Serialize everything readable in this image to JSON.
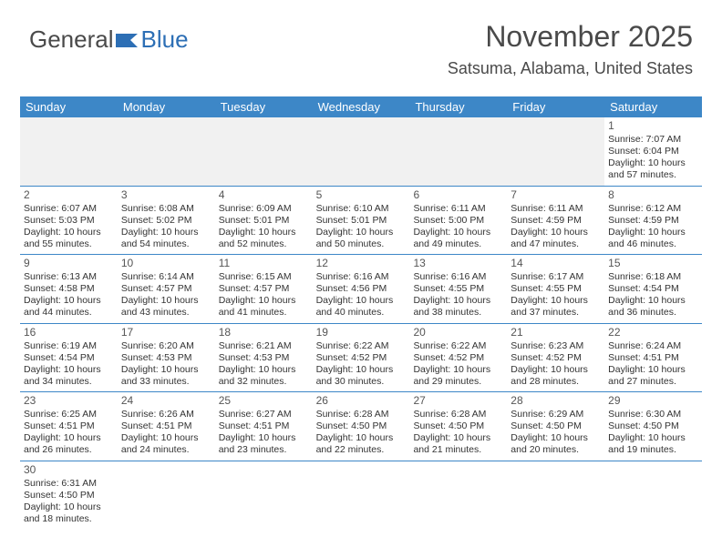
{
  "logo": {
    "general": "General",
    "blue": "Blue"
  },
  "title": {
    "month": "November 2025",
    "location": "Satsuma, Alabama, United States"
  },
  "dayNames": [
    "Sunday",
    "Monday",
    "Tuesday",
    "Wednesday",
    "Thursday",
    "Friday",
    "Saturday"
  ],
  "colors": {
    "headerBg": "#3d87c7",
    "accent": "#2d6fb5",
    "text": "#4a4a4a"
  },
  "weeks": [
    [
      {
        "blank": true
      },
      {
        "blank": true
      },
      {
        "blank": true
      },
      {
        "blank": true
      },
      {
        "blank": true
      },
      {
        "blank": true
      },
      {
        "num": "1",
        "sunrise": "Sunrise: 7:07 AM",
        "sunset": "Sunset: 6:04 PM",
        "daylight1": "Daylight: 10 hours",
        "daylight2": "and 57 minutes."
      }
    ],
    [
      {
        "num": "2",
        "sunrise": "Sunrise: 6:07 AM",
        "sunset": "Sunset: 5:03 PM",
        "daylight1": "Daylight: 10 hours",
        "daylight2": "and 55 minutes."
      },
      {
        "num": "3",
        "sunrise": "Sunrise: 6:08 AM",
        "sunset": "Sunset: 5:02 PM",
        "daylight1": "Daylight: 10 hours",
        "daylight2": "and 54 minutes."
      },
      {
        "num": "4",
        "sunrise": "Sunrise: 6:09 AM",
        "sunset": "Sunset: 5:01 PM",
        "daylight1": "Daylight: 10 hours",
        "daylight2": "and 52 minutes."
      },
      {
        "num": "5",
        "sunrise": "Sunrise: 6:10 AM",
        "sunset": "Sunset: 5:01 PM",
        "daylight1": "Daylight: 10 hours",
        "daylight2": "and 50 minutes."
      },
      {
        "num": "6",
        "sunrise": "Sunrise: 6:11 AM",
        "sunset": "Sunset: 5:00 PM",
        "daylight1": "Daylight: 10 hours",
        "daylight2": "and 49 minutes."
      },
      {
        "num": "7",
        "sunrise": "Sunrise: 6:11 AM",
        "sunset": "Sunset: 4:59 PM",
        "daylight1": "Daylight: 10 hours",
        "daylight2": "and 47 minutes."
      },
      {
        "num": "8",
        "sunrise": "Sunrise: 6:12 AM",
        "sunset": "Sunset: 4:59 PM",
        "daylight1": "Daylight: 10 hours",
        "daylight2": "and 46 minutes."
      }
    ],
    [
      {
        "num": "9",
        "sunrise": "Sunrise: 6:13 AM",
        "sunset": "Sunset: 4:58 PM",
        "daylight1": "Daylight: 10 hours",
        "daylight2": "and 44 minutes."
      },
      {
        "num": "10",
        "sunrise": "Sunrise: 6:14 AM",
        "sunset": "Sunset: 4:57 PM",
        "daylight1": "Daylight: 10 hours",
        "daylight2": "and 43 minutes."
      },
      {
        "num": "11",
        "sunrise": "Sunrise: 6:15 AM",
        "sunset": "Sunset: 4:57 PM",
        "daylight1": "Daylight: 10 hours",
        "daylight2": "and 41 minutes."
      },
      {
        "num": "12",
        "sunrise": "Sunrise: 6:16 AM",
        "sunset": "Sunset: 4:56 PM",
        "daylight1": "Daylight: 10 hours",
        "daylight2": "and 40 minutes."
      },
      {
        "num": "13",
        "sunrise": "Sunrise: 6:16 AM",
        "sunset": "Sunset: 4:55 PM",
        "daylight1": "Daylight: 10 hours",
        "daylight2": "and 38 minutes."
      },
      {
        "num": "14",
        "sunrise": "Sunrise: 6:17 AM",
        "sunset": "Sunset: 4:55 PM",
        "daylight1": "Daylight: 10 hours",
        "daylight2": "and 37 minutes."
      },
      {
        "num": "15",
        "sunrise": "Sunrise: 6:18 AM",
        "sunset": "Sunset: 4:54 PM",
        "daylight1": "Daylight: 10 hours",
        "daylight2": "and 36 minutes."
      }
    ],
    [
      {
        "num": "16",
        "sunrise": "Sunrise: 6:19 AM",
        "sunset": "Sunset: 4:54 PM",
        "daylight1": "Daylight: 10 hours",
        "daylight2": "and 34 minutes."
      },
      {
        "num": "17",
        "sunrise": "Sunrise: 6:20 AM",
        "sunset": "Sunset: 4:53 PM",
        "daylight1": "Daylight: 10 hours",
        "daylight2": "and 33 minutes."
      },
      {
        "num": "18",
        "sunrise": "Sunrise: 6:21 AM",
        "sunset": "Sunset: 4:53 PM",
        "daylight1": "Daylight: 10 hours",
        "daylight2": "and 32 minutes."
      },
      {
        "num": "19",
        "sunrise": "Sunrise: 6:22 AM",
        "sunset": "Sunset: 4:52 PM",
        "daylight1": "Daylight: 10 hours",
        "daylight2": "and 30 minutes."
      },
      {
        "num": "20",
        "sunrise": "Sunrise: 6:22 AM",
        "sunset": "Sunset: 4:52 PM",
        "daylight1": "Daylight: 10 hours",
        "daylight2": "and 29 minutes."
      },
      {
        "num": "21",
        "sunrise": "Sunrise: 6:23 AM",
        "sunset": "Sunset: 4:52 PM",
        "daylight1": "Daylight: 10 hours",
        "daylight2": "and 28 minutes."
      },
      {
        "num": "22",
        "sunrise": "Sunrise: 6:24 AM",
        "sunset": "Sunset: 4:51 PM",
        "daylight1": "Daylight: 10 hours",
        "daylight2": "and 27 minutes."
      }
    ],
    [
      {
        "num": "23",
        "sunrise": "Sunrise: 6:25 AM",
        "sunset": "Sunset: 4:51 PM",
        "daylight1": "Daylight: 10 hours",
        "daylight2": "and 26 minutes."
      },
      {
        "num": "24",
        "sunrise": "Sunrise: 6:26 AM",
        "sunset": "Sunset: 4:51 PM",
        "daylight1": "Daylight: 10 hours",
        "daylight2": "and 24 minutes."
      },
      {
        "num": "25",
        "sunrise": "Sunrise: 6:27 AM",
        "sunset": "Sunset: 4:51 PM",
        "daylight1": "Daylight: 10 hours",
        "daylight2": "and 23 minutes."
      },
      {
        "num": "26",
        "sunrise": "Sunrise: 6:28 AM",
        "sunset": "Sunset: 4:50 PM",
        "daylight1": "Daylight: 10 hours",
        "daylight2": "and 22 minutes."
      },
      {
        "num": "27",
        "sunrise": "Sunrise: 6:28 AM",
        "sunset": "Sunset: 4:50 PM",
        "daylight1": "Daylight: 10 hours",
        "daylight2": "and 21 minutes."
      },
      {
        "num": "28",
        "sunrise": "Sunrise: 6:29 AM",
        "sunset": "Sunset: 4:50 PM",
        "daylight1": "Daylight: 10 hours",
        "daylight2": "and 20 minutes."
      },
      {
        "num": "29",
        "sunrise": "Sunrise: 6:30 AM",
        "sunset": "Sunset: 4:50 PM",
        "daylight1": "Daylight: 10 hours",
        "daylight2": "and 19 minutes."
      }
    ],
    [
      {
        "num": "30",
        "sunrise": "Sunrise: 6:31 AM",
        "sunset": "Sunset: 4:50 PM",
        "daylight1": "Daylight: 10 hours",
        "daylight2": "and 18 minutes."
      },
      {
        "blank": true
      },
      {
        "blank": true
      },
      {
        "blank": true
      },
      {
        "blank": true
      },
      {
        "blank": true
      },
      {
        "blank": true
      }
    ]
  ]
}
